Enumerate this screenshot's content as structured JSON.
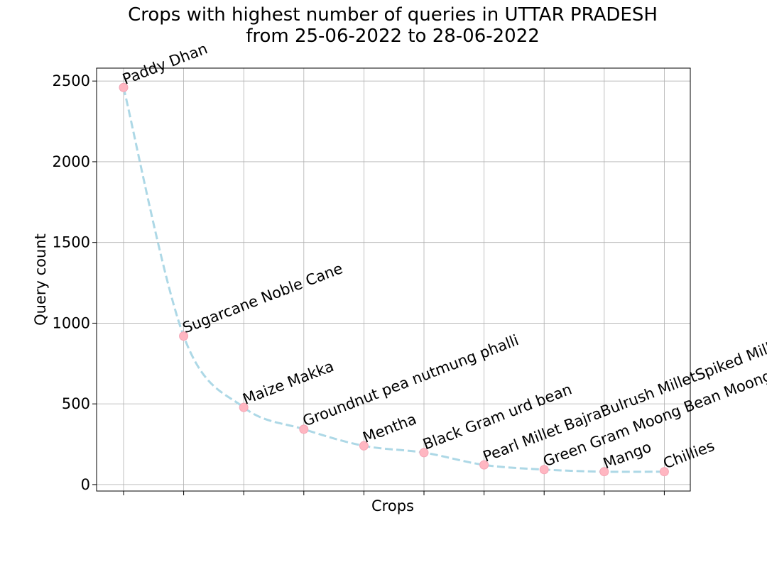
{
  "chart_data": {
    "type": "line",
    "title_line1": "Crops with highest number of queries in UTTAR PRADESH",
    "title_line2": "from 25-06-2022 to 28-06-2022",
    "xlabel": "Crops",
    "ylabel": "Query count",
    "categories": [
      "Paddy Dhan",
      "Sugarcane Noble Cane",
      "Maize Makka",
      "Groundnut pea nutmung phalli",
      "Mentha",
      "Black Gram urd bean",
      "Pearl Millet BajraBulrush MilletSpiked Millet",
      "Green Gram Moong Bean Moong",
      "Mango",
      "Chillies"
    ],
    "values": [
      2460,
      920,
      478,
      343,
      240,
      198,
      122,
      93,
      80,
      80
    ],
    "ylim": [
      -40,
      2580
    ],
    "yticks": [
      0,
      500,
      1000,
      1500,
      2000,
      2500
    ],
    "grid": true,
    "line_color": "#add8e6",
    "marker_color": "#ffb6c1",
    "line_style": "dashed"
  }
}
